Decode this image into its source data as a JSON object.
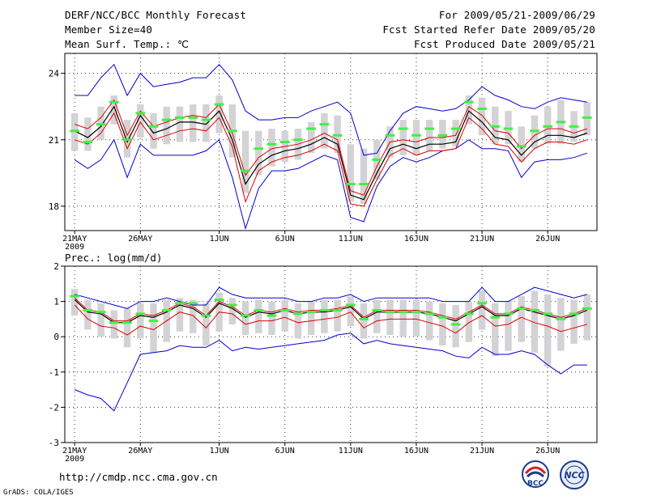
{
  "header": {
    "title": "DERF/NCC/BCC Monthly Forecast",
    "member_size": "Member Size=40",
    "variable": "Mean Surf. Temp.: ℃",
    "period": "For 2009/05/21-2009/06/29",
    "refer_date": "Fcst Started Refer Date 2009/05/20",
    "produced_date": "Fcst Produced Date 2009/05/21"
  },
  "footer": {
    "url": "http://cmdp.ncc.cma.gov.cn",
    "grads": "GrADS: COLA/IGES",
    "logo_bcc": "BCC",
    "logo_ncc": "NCC"
  },
  "colors": {
    "envelope": "#0000cc",
    "spread": "#dd0000",
    "mean": "#000000",
    "box": "#d3d3d6",
    "marker": "#44ee44"
  },
  "chart_data": [
    {
      "type": "line",
      "title": "Mean Surf. Temp.: ℃",
      "xlabel": "",
      "ylabel": "℃",
      "days": 40,
      "ylim": [
        16.9,
        24.9
      ],
      "yticks": [
        18,
        21,
        24
      ],
      "grid": true,
      "xtick_labels": [
        {
          "day": 1,
          "label": "21MAY",
          "sub": "2009"
        },
        {
          "day": 6,
          "label": "26MAY"
        },
        {
          "day": 12,
          "label": "1JUN"
        },
        {
          "day": 17,
          "label": "6JUN"
        },
        {
          "day": 22,
          "label": "11JUN"
        },
        {
          "day": 27,
          "label": "16JUN"
        },
        {
          "day": 32,
          "label": "21JUN"
        },
        {
          "day": 37,
          "label": "26JUN"
        }
      ],
      "series": [
        {
          "name": "max",
          "values": [
            23.0,
            23.0,
            23.8,
            24.4,
            23.0,
            24.0,
            23.4,
            23.5,
            23.6,
            23.8,
            23.8,
            24.4,
            23.7,
            22.3,
            21.9,
            21.9,
            22.0,
            22.0,
            22.3,
            22.5,
            22.7,
            22.2,
            20.3,
            20.4,
            21.4,
            22.2,
            22.5,
            22.4,
            22.3,
            22.4,
            22.8,
            23.4,
            23.0,
            22.8,
            22.5,
            22.4,
            22.7,
            22.9,
            22.8,
            22.7
          ]
        },
        {
          "name": "upper",
          "values": [
            21.7,
            21.5,
            22.0,
            22.8,
            21.2,
            22.3,
            21.6,
            21.8,
            22.0,
            22.1,
            22.0,
            22.6,
            21.3,
            19.4,
            20.2,
            20.6,
            20.7,
            20.8,
            21.0,
            21.3,
            21.0,
            18.7,
            18.5,
            19.8,
            20.9,
            21.0,
            20.9,
            21.1,
            21.1,
            21.2,
            22.5,
            22.1,
            21.4,
            21.3,
            20.6,
            21.2,
            21.5,
            21.5,
            21.3,
            21.5
          ]
        },
        {
          "name": "mean",
          "values": [
            21.4,
            21.1,
            21.6,
            22.5,
            20.9,
            22.1,
            21.3,
            21.5,
            21.8,
            21.8,
            21.7,
            22.3,
            21.0,
            19.0,
            19.9,
            20.3,
            20.5,
            20.6,
            20.8,
            21.1,
            20.8,
            18.5,
            18.3,
            19.5,
            20.6,
            20.8,
            20.6,
            20.8,
            20.8,
            20.9,
            22.3,
            21.8,
            21.1,
            21.0,
            20.3,
            20.9,
            21.2,
            21.2,
            21.1,
            21.3
          ]
        },
        {
          "name": "lower",
          "values": [
            21.0,
            20.8,
            21.3,
            22.2,
            20.6,
            21.8,
            21.0,
            21.2,
            21.4,
            21.5,
            21.4,
            22.0,
            20.7,
            18.2,
            19.6,
            20.0,
            20.2,
            20.3,
            20.5,
            20.8,
            20.5,
            18.1,
            18.0,
            19.2,
            20.3,
            20.6,
            20.3,
            20.5,
            20.5,
            20.6,
            22.0,
            21.5,
            20.8,
            20.7,
            20.0,
            20.6,
            20.9,
            20.9,
            20.8,
            21.0
          ]
        },
        {
          "name": "min",
          "values": [
            20.1,
            19.7,
            20.1,
            21.0,
            19.3,
            20.8,
            20.3,
            20.3,
            20.3,
            20.3,
            20.5,
            21.0,
            19.3,
            17.0,
            18.8,
            19.6,
            19.6,
            19.7,
            20.0,
            20.3,
            20.1,
            17.5,
            17.3,
            18.9,
            19.8,
            20.2,
            20.0,
            20.2,
            20.5,
            20.6,
            21.0,
            20.6,
            20.6,
            20.5,
            19.3,
            20.0,
            20.1,
            20.1,
            20.2,
            20.4
          ]
        },
        {
          "name": "box_top",
          "values": [
            22.2,
            22.0,
            22.5,
            23.0,
            21.9,
            22.6,
            22.2,
            22.5,
            22.5,
            22.6,
            22.6,
            23.0,
            22.6,
            21.4,
            21.4,
            21.5,
            21.4,
            21.5,
            21.8,
            22.2,
            22.1,
            20.8,
            20.6,
            21.0,
            21.6,
            21.9,
            21.9,
            21.9,
            21.9,
            21.9,
            23.0,
            22.9,
            22.5,
            22.3,
            21.6,
            22.1,
            22.5,
            22.8,
            22.3,
            22.7
          ]
        },
        {
          "name": "box_bottom",
          "values": [
            20.5,
            20.5,
            21.0,
            21.7,
            20.2,
            21.1,
            20.6,
            20.8,
            20.9,
            20.9,
            20.9,
            21.3,
            20.2,
            18.6,
            19.4,
            19.8,
            20.0,
            20.1,
            20.4,
            20.6,
            20.4,
            18.2,
            18.1,
            19.2,
            20.2,
            20.3,
            20.3,
            20.5,
            20.6,
            20.7,
            21.7,
            21.2,
            20.8,
            20.8,
            20.0,
            20.6,
            20.8,
            20.8,
            20.9,
            21.2
          ]
        },
        {
          "name": "marker",
          "values": [
            21.4,
            20.9,
            21.7,
            22.7,
            21.0,
            22.2,
            21.6,
            21.9,
            22.0,
            22.0,
            21.9,
            22.6,
            21.4,
            19.6,
            20.6,
            20.8,
            20.9,
            21.0,
            21.5,
            21.7,
            21.2,
            19.0,
            19.0,
            20.1,
            21.2,
            21.5,
            21.2,
            21.5,
            21.2,
            21.5,
            22.7,
            22.4,
            21.6,
            21.5,
            20.7,
            21.4,
            21.6,
            21.8,
            21.6,
            22.0
          ]
        }
      ]
    },
    {
      "type": "line",
      "title": "Prec.: log(mm/d)",
      "xlabel": "",
      "ylabel": "log(mm/d)",
      "days": 40,
      "ylim": [
        -3,
        2
      ],
      "yticks": [
        -3,
        -2,
        -1,
        0,
        1,
        2
      ],
      "grid": true,
      "xtick_labels": [
        {
          "day": 1,
          "label": "21MAY",
          "sub": "2009"
        },
        {
          "day": 6,
          "label": "26MAY"
        },
        {
          "day": 12,
          "label": "1JUN"
        },
        {
          "day": 17,
          "label": "6JUN"
        },
        {
          "day": 22,
          "label": "11JUN"
        },
        {
          "day": 27,
          "label": "16JUN"
        },
        {
          "day": 32,
          "label": "21JUN"
        },
        {
          "day": 37,
          "label": "26JUN"
        }
      ],
      "series": [
        {
          "name": "max",
          "values": [
            1.2,
            1.1,
            1.0,
            0.9,
            0.8,
            1.0,
            1.0,
            1.1,
            1.0,
            0.9,
            0.9,
            1.4,
            1.2,
            1.1,
            1.1,
            1.1,
            1.1,
            1.0,
            1.0,
            1.1,
            1.1,
            1.2,
            1.0,
            1.1,
            1.1,
            1.1,
            1.1,
            1.1,
            1.0,
            1.0,
            1.0,
            1.4,
            1.0,
            1.0,
            1.2,
            1.4,
            1.3,
            1.2,
            1.1,
            1.2
          ]
        },
        {
          "name": "upper",
          "values": [
            1.1,
            0.75,
            0.7,
            0.45,
            0.45,
            0.65,
            0.6,
            0.75,
            0.95,
            0.85,
            0.6,
            1.0,
            0.85,
            0.6,
            0.75,
            0.7,
            0.8,
            0.7,
            0.75,
            0.75,
            0.8,
            0.9,
            0.55,
            0.75,
            0.75,
            0.75,
            0.75,
            0.7,
            0.6,
            0.5,
            0.7,
            0.9,
            0.65,
            0.65,
            0.85,
            0.75,
            0.65,
            0.55,
            0.65,
            0.8
          ]
        },
        {
          "name": "mean",
          "values": [
            1.05,
            0.7,
            0.65,
            0.4,
            0.4,
            0.6,
            0.55,
            0.7,
            0.9,
            0.8,
            0.55,
            0.95,
            0.8,
            0.55,
            0.7,
            0.65,
            0.75,
            0.65,
            0.7,
            0.7,
            0.75,
            0.85,
            0.5,
            0.7,
            0.7,
            0.7,
            0.7,
            0.65,
            0.55,
            0.45,
            0.65,
            0.85,
            0.6,
            0.6,
            0.8,
            0.7,
            0.6,
            0.5,
            0.6,
            0.75
          ]
        },
        {
          "name": "lower",
          "values": [
            0.9,
            0.5,
            0.3,
            0.25,
            0.05,
            0.3,
            0.2,
            0.45,
            0.7,
            0.6,
            0.25,
            0.7,
            0.65,
            0.35,
            0.45,
            0.45,
            0.55,
            0.4,
            0.45,
            0.5,
            0.55,
            0.7,
            0.25,
            0.45,
            0.5,
            0.5,
            0.5,
            0.4,
            0.3,
            0.1,
            0.4,
            0.6,
            0.3,
            0.35,
            0.55,
            0.4,
            0.3,
            0.15,
            0.25,
            0.35
          ]
        },
        {
          "name": "min",
          "values": [
            -1.5,
            -1.65,
            -1.75,
            -2.1,
            -1.3,
            -0.5,
            -0.45,
            -0.4,
            -0.25,
            -0.3,
            -0.3,
            -0.1,
            -0.4,
            -0.3,
            -0.35,
            -0.3,
            -0.25,
            -0.2,
            -0.15,
            -0.1,
            0.05,
            0.1,
            -0.2,
            -0.1,
            -0.2,
            -0.25,
            -0.3,
            -0.35,
            -0.4,
            -0.55,
            -0.6,
            -0.3,
            -0.5,
            -0.5,
            -0.4,
            -0.5,
            -0.8,
            -1.05,
            -0.8,
            -0.8
          ]
        },
        {
          "name": "box_top",
          "values": [
            1.35,
            1.05,
            0.95,
            0.75,
            0.8,
            0.95,
            0.95,
            1.05,
            1.1,
            1.05,
            0.95,
            1.25,
            1.1,
            1.0,
            1.05,
            1.0,
            1.05,
            0.95,
            1.0,
            1.05,
            1.05,
            1.15,
            0.95,
            1.05,
            1.05,
            1.05,
            1.05,
            1.0,
            0.95,
            0.9,
            1.0,
            1.3,
            0.95,
            1.0,
            1.15,
            1.3,
            1.2,
            1.1,
            1.05,
            1.2
          ]
        },
        {
          "name": "box_bottom",
          "values": [
            0.6,
            0.2,
            0.0,
            -0.05,
            -0.3,
            -0.05,
            -0.45,
            -0.15,
            0.15,
            0.1,
            -0.25,
            0.15,
            0.35,
            0.05,
            0.1,
            0.05,
            0.15,
            -0.05,
            0.05,
            0.1,
            0.15,
            0.3,
            -0.05,
            0.1,
            0.05,
            0.0,
            0.0,
            -0.1,
            -0.25,
            -0.3,
            -0.15,
            0.2,
            -0.55,
            -0.4,
            -0.15,
            -0.45,
            -0.85,
            -0.4,
            -0.2,
            -0.1
          ]
        },
        {
          "name": "marker",
          "values": [
            1.15,
            0.75,
            0.7,
            0.4,
            0.4,
            0.65,
            0.45,
            0.75,
            0.95,
            0.95,
            0.6,
            1.05,
            0.9,
            0.6,
            0.75,
            0.6,
            0.75,
            0.65,
            0.7,
            0.75,
            0.75,
            0.9,
            0.5,
            0.75,
            0.7,
            0.7,
            0.7,
            0.65,
            0.55,
            0.35,
            0.65,
            0.95,
            0.55,
            0.65,
            0.8,
            0.75,
            0.65,
            0.5,
            0.65,
            0.8
          ]
        }
      ]
    }
  ]
}
